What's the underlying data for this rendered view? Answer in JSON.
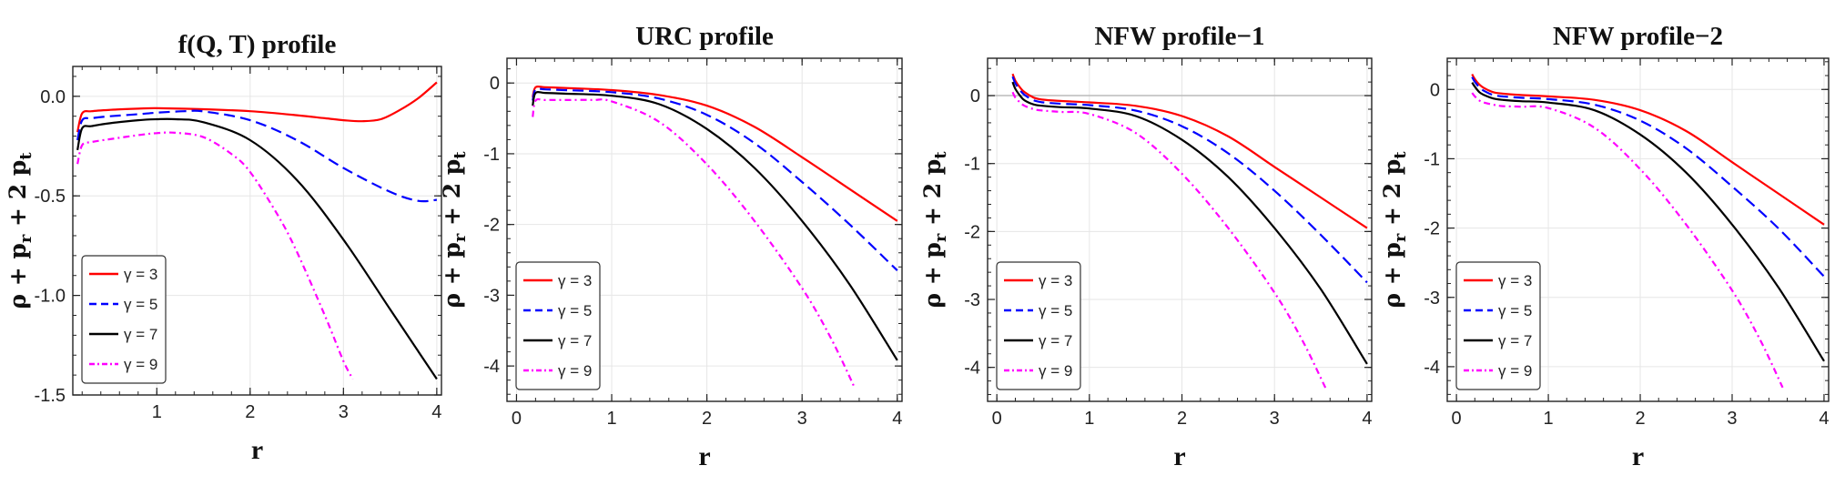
{
  "chart_data": [
    {
      "type": "line",
      "title": "f(Q, T) profile",
      "xlabel": "r",
      "ylabel": "ρ + p_r + 2 p_t",
      "xlim": [
        0.1,
        4.05
      ],
      "ylim": [
        -1.5,
        0.15
      ],
      "xticks": [
        1,
        2,
        3,
        4
      ],
      "yticks": [
        {
          "v": 0.0,
          "label": "0.0"
        },
        {
          "v": -0.5,
          "label": "-0.5"
        },
        {
          "v": -1.0,
          "label": "-1.0"
        },
        {
          "v": -1.5,
          "label": "-1.5"
        }
      ],
      "grid": true,
      "legend_position": "bottom-left",
      "series": [
        {
          "name": "γ = 3",
          "color": "#ff0000",
          "dash": "solid",
          "x": [
            0.15,
            0.2,
            0.3,
            0.5,
            0.8,
            1.0,
            1.5,
            2.0,
            2.5,
            2.8,
            3.0,
            3.2,
            3.4,
            3.6,
            3.8,
            4.0
          ],
          "y": [
            -0.18,
            -0.085,
            -0.075,
            -0.068,
            -0.062,
            -0.06,
            -0.065,
            -0.075,
            -0.095,
            -0.11,
            -0.12,
            -0.125,
            -0.115,
            -0.07,
            -0.01,
            0.07
          ]
        },
        {
          "name": "γ = 5",
          "color": "#0000ff",
          "dash": "dashed",
          "x": [
            0.15,
            0.2,
            0.3,
            0.5,
            0.8,
            1.0,
            1.3,
            1.5,
            2.0,
            2.5,
            3.0,
            3.5,
            3.8,
            4.0
          ],
          "y": [
            -0.22,
            -0.12,
            -0.11,
            -0.1,
            -0.09,
            -0.082,
            -0.075,
            -0.076,
            -0.12,
            -0.22,
            -0.36,
            -0.48,
            -0.525,
            -0.52
          ]
        },
        {
          "name": "γ = 7",
          "color": "#000000",
          "dash": "solid",
          "x": [
            0.15,
            0.2,
            0.3,
            0.5,
            0.8,
            1.0,
            1.2,
            1.5,
            2.0,
            2.5,
            3.0,
            3.5,
            3.8,
            4.0
          ],
          "y": [
            -0.27,
            -0.16,
            -0.15,
            -0.135,
            -0.12,
            -0.115,
            -0.115,
            -0.13,
            -0.22,
            -0.42,
            -0.72,
            -1.07,
            -1.28,
            -1.42
          ]
        },
        {
          "name": "γ = 9",
          "color": "#ff00ff",
          "dash": "dashdot",
          "x": [
            0.15,
            0.2,
            0.3,
            0.5,
            0.8,
            1.0,
            1.2,
            1.5,
            1.8,
            2.0,
            2.3,
            2.5,
            2.8,
            3.0,
            3.1
          ],
          "y": [
            -0.34,
            -0.245,
            -0.23,
            -0.215,
            -0.195,
            -0.185,
            -0.183,
            -0.205,
            -0.29,
            -0.38,
            -0.6,
            -0.78,
            -1.1,
            -1.33,
            -1.42
          ]
        }
      ]
    },
    {
      "type": "line",
      "title": "URC profile",
      "xlabel": "r",
      "ylabel": "ρ + p_r + 2 p_t",
      "xlim": [
        -0.1,
        4.05
      ],
      "ylim": [
        -4.5,
        0.35
      ],
      "xticks": [
        0,
        1,
        2,
        3,
        4
      ],
      "yticks": [
        {
          "v": 0,
          "label": "0"
        },
        {
          "v": -1,
          "label": "-1"
        },
        {
          "v": -2,
          "label": "-2"
        },
        {
          "v": -3,
          "label": "-3"
        },
        {
          "v": -4,
          "label": "-4"
        }
      ],
      "grid": true,
      "legend_position": "bottom-left",
      "series": [
        {
          "name": "γ = 3",
          "color": "#ff0000",
          "dash": "solid",
          "x": [
            0.17,
            0.2,
            0.3,
            0.5,
            1.0,
            1.5,
            2.0,
            2.5,
            3.0,
            3.5,
            4.0
          ],
          "y": [
            -0.2,
            -0.06,
            -0.06,
            -0.07,
            -0.1,
            -0.17,
            -0.32,
            -0.62,
            -1.05,
            -1.5,
            -1.95
          ]
        },
        {
          "name": "γ = 5",
          "color": "#0000ff",
          "dash": "dashed",
          "x": [
            0.17,
            0.2,
            0.3,
            0.5,
            1.0,
            1.5,
            2.0,
            2.5,
            3.0,
            3.5,
            4.0
          ],
          "y": [
            -0.25,
            -0.09,
            -0.09,
            -0.1,
            -0.13,
            -0.22,
            -0.45,
            -0.85,
            -1.4,
            -2.0,
            -2.65
          ]
        },
        {
          "name": "γ = 7",
          "color": "#000000",
          "dash": "solid",
          "x": [
            0.17,
            0.2,
            0.3,
            0.5,
            1.0,
            1.5,
            2.0,
            2.5,
            3.0,
            3.5,
            4.0
          ],
          "y": [
            -0.32,
            -0.14,
            -0.14,
            -0.15,
            -0.18,
            -0.3,
            -0.65,
            -1.2,
            -1.95,
            -2.85,
            -3.92
          ]
        },
        {
          "name": "γ = 9",
          "color": "#ff00ff",
          "dash": "dashdot",
          "x": [
            0.17,
            0.2,
            0.3,
            0.5,
            0.8,
            1.0,
            1.5,
            2.0,
            2.5,
            3.0,
            3.3,
            3.55
          ],
          "y": [
            -0.48,
            -0.25,
            -0.24,
            -0.24,
            -0.24,
            -0.26,
            -0.55,
            -1.15,
            -1.95,
            -2.9,
            -3.6,
            -4.3
          ]
        }
      ]
    },
    {
      "type": "line",
      "title": "NFW profile−1",
      "xlabel": "r",
      "ylabel": "ρ + p_r + 2 p_t",
      "xlim": [
        -0.1,
        4.05
      ],
      "ylim": [
        -4.5,
        0.55
      ],
      "xticks": [
        0,
        1,
        2,
        3,
        4
      ],
      "yticks": [
        {
          "v": 0,
          "label": "0"
        },
        {
          "v": -1,
          "label": "-1"
        },
        {
          "v": -2,
          "label": "-2"
        },
        {
          "v": -3,
          "label": "-3"
        },
        {
          "v": -4,
          "label": "-4"
        }
      ],
      "grid": true,
      "zero_line": true,
      "legend_position": "bottom-left",
      "series": [
        {
          "name": "γ = 3",
          "color": "#ff0000",
          "dash": "solid",
          "x": [
            0.17,
            0.2,
            0.25,
            0.3,
            0.4,
            0.5,
            0.7,
            1.0,
            1.5,
            2.0,
            2.5,
            3.0,
            3.5,
            4.0
          ],
          "y": [
            0.32,
            0.22,
            0.12,
            0.05,
            -0.03,
            -0.06,
            -0.08,
            -0.1,
            -0.15,
            -0.3,
            -0.6,
            -1.05,
            -1.5,
            -1.95
          ]
        },
        {
          "name": "γ = 5",
          "color": "#0000ff",
          "dash": "dashed",
          "x": [
            0.17,
            0.2,
            0.25,
            0.3,
            0.4,
            0.5,
            0.7,
            1.0,
            1.5,
            2.0,
            2.5,
            3.0,
            3.5,
            4.0
          ],
          "y": [
            0.28,
            0.18,
            0.08,
            0.01,
            -0.07,
            -0.1,
            -0.12,
            -0.14,
            -0.22,
            -0.45,
            -0.85,
            -1.4,
            -2.05,
            -2.75
          ]
        },
        {
          "name": "γ = 7",
          "color": "#000000",
          "dash": "solid",
          "x": [
            0.17,
            0.2,
            0.25,
            0.3,
            0.4,
            0.5,
            0.7,
            1.0,
            1.5,
            2.0,
            2.5,
            3.0,
            3.5,
            4.0
          ],
          "y": [
            0.2,
            0.1,
            0.0,
            -0.07,
            -0.13,
            -0.15,
            -0.17,
            -0.19,
            -0.3,
            -0.65,
            -1.2,
            -1.95,
            -2.85,
            -3.95
          ]
        },
        {
          "name": "γ = 9",
          "color": "#ff00ff",
          "dash": "dashdot",
          "x": [
            0.17,
            0.2,
            0.25,
            0.3,
            0.4,
            0.5,
            0.7,
            1.0,
            1.5,
            2.0,
            2.5,
            3.0,
            3.3,
            3.55
          ],
          "y": [
            0.05,
            -0.03,
            -0.1,
            -0.15,
            -0.2,
            -0.22,
            -0.24,
            -0.27,
            -0.55,
            -1.15,
            -1.95,
            -2.9,
            -3.6,
            -4.3
          ]
        }
      ]
    },
    {
      "type": "line",
      "title": "NFW profile−2",
      "xlabel": "r",
      "ylabel": "ρ + p_r + 2 p_t",
      "xlim": [
        -0.1,
        4.05
      ],
      "ylim": [
        -4.5,
        0.45
      ],
      "xticks": [
        0,
        1,
        2,
        3,
        4
      ],
      "yticks": [
        {
          "v": 0,
          "label": "0"
        },
        {
          "v": -1,
          "label": "-1"
        },
        {
          "v": -2,
          "label": "-2"
        },
        {
          "v": -3,
          "label": "-3"
        },
        {
          "v": -4,
          "label": "-4"
        }
      ],
      "grid": true,
      "legend_position": "bottom-left",
      "series": [
        {
          "name": "γ = 3",
          "color": "#ff0000",
          "dash": "solid",
          "x": [
            0.17,
            0.2,
            0.25,
            0.3,
            0.4,
            0.5,
            0.7,
            1.0,
            1.5,
            2.0,
            2.5,
            3.0,
            3.5,
            4.0
          ],
          "y": [
            0.22,
            0.15,
            0.07,
            0.02,
            -0.04,
            -0.06,
            -0.08,
            -0.1,
            -0.15,
            -0.3,
            -0.6,
            -1.05,
            -1.5,
            -1.95
          ]
        },
        {
          "name": "γ = 5",
          "color": "#0000ff",
          "dash": "dashed",
          "x": [
            0.17,
            0.2,
            0.25,
            0.3,
            0.4,
            0.5,
            0.7,
            1.0,
            1.5,
            2.0,
            2.5,
            3.0,
            3.5,
            4.0
          ],
          "y": [
            0.18,
            0.11,
            0.03,
            -0.02,
            -0.08,
            -0.1,
            -0.12,
            -0.14,
            -0.22,
            -0.45,
            -0.85,
            -1.4,
            -2.0,
            -2.7
          ]
        },
        {
          "name": "γ = 7",
          "color": "#000000",
          "dash": "solid",
          "x": [
            0.17,
            0.2,
            0.25,
            0.3,
            0.4,
            0.5,
            0.7,
            1.0,
            1.5,
            2.0,
            2.5,
            3.0,
            3.5,
            4.0
          ],
          "y": [
            0.1,
            0.04,
            -0.04,
            -0.08,
            -0.13,
            -0.15,
            -0.17,
            -0.19,
            -0.3,
            -0.65,
            -1.2,
            -1.95,
            -2.85,
            -3.92
          ]
        },
        {
          "name": "γ = 9",
          "color": "#ff00ff",
          "dash": "dashdot",
          "x": [
            0.17,
            0.2,
            0.25,
            0.3,
            0.4,
            0.5,
            0.7,
            1.0,
            1.5,
            2.0,
            2.5,
            3.0,
            3.3,
            3.55
          ],
          "y": [
            -0.05,
            -0.1,
            -0.16,
            -0.19,
            -0.22,
            -0.24,
            -0.25,
            -0.27,
            -0.55,
            -1.15,
            -1.95,
            -2.9,
            -3.6,
            -4.3
          ]
        }
      ]
    }
  ]
}
